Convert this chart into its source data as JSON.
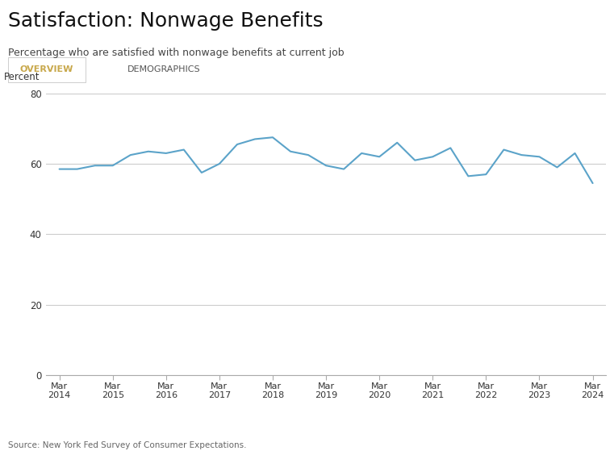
{
  "title": "Satisfaction: Nonwage Benefits",
  "subtitle": "Percentage who are satisfied with nonwage benefits at current job",
  "tab1": "OVERVIEW",
  "tab2": "DEMOGRAPHICS",
  "ylabel": "Percent",
  "source": "Source: New York Fed Survey of Consumer Expectations.",
  "ylim": [
    0,
    80
  ],
  "yticks": [
    0,
    20,
    40,
    60,
    80
  ],
  "line_color": "#5ba3c9",
  "line_width": 1.5,
  "bg_color": "#ffffff",
  "tab_bar_color": "#e8e8e8",
  "tab_active_color": "#c8a84b",
  "grid_color": "#cccccc",
  "x_labels": [
    "Mar\n2014",
    "Mar\n2015",
    "Mar\n2016",
    "Mar\n2017",
    "Mar\n2018",
    "Mar\n2019",
    "Mar\n2020",
    "Mar\n2021",
    "Mar\n2022",
    "Mar\n2023",
    "Mar\n2024"
  ],
  "x_positions": [
    0,
    12,
    24,
    36,
    48,
    60,
    72,
    84,
    96,
    108,
    120
  ],
  "data_x": [
    0,
    4,
    8,
    12,
    16,
    20,
    24,
    28,
    32,
    36,
    40,
    44,
    48,
    52,
    56,
    60,
    64,
    68,
    72,
    76,
    80,
    84,
    88,
    92,
    96,
    100,
    104,
    108,
    112,
    116,
    120
  ],
  "data_y": [
    58.5,
    58.5,
    59.5,
    59.5,
    62.5,
    63.5,
    63.0,
    64.0,
    57.5,
    60.0,
    65.5,
    67.0,
    67.5,
    63.5,
    62.5,
    59.5,
    58.5,
    63.0,
    62.0,
    66.0,
    61.0,
    62.0,
    64.5,
    56.5,
    57.0,
    64.0,
    62.5,
    62.0,
    59.0,
    63.0,
    54.5
  ]
}
